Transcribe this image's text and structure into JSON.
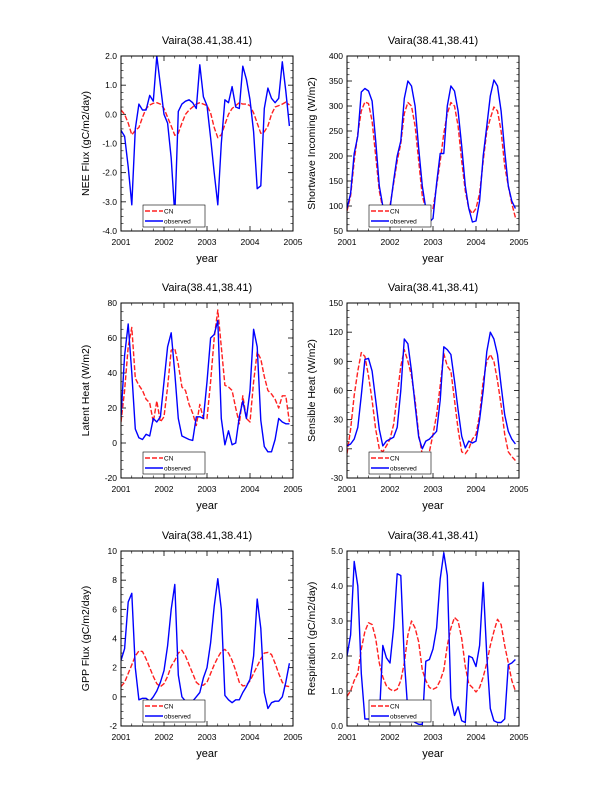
{
  "colors": {
    "CN": "#ff2020",
    "observed": "#0000ff"
  },
  "chart_data": [
    {
      "type": "line",
      "title": "Vaira(38.41,38.41)",
      "xlabel": "year",
      "ylabel": "NEE Flux (gC/m2/day)",
      "x_start": 2001,
      "x_interval": "monthly",
      "xlim": [
        2001,
        2005
      ],
      "xticks": [
        "2001",
        "2002",
        "2003",
        "2004",
        "2005"
      ],
      "ylim": [
        -4.0,
        2.0
      ],
      "yticks": [
        "-4.0",
        "-3.0",
        "-2.0",
        "-1.0",
        "0.0",
        "1.0",
        "2.0"
      ],
      "legend": {
        "placement": "bottom-left",
        "entries": [
          "CN",
          "observed"
        ]
      },
      "series": [
        {
          "name": "CN",
          "values": [
            0.15,
            0.0,
            -0.3,
            -0.7,
            -0.55,
            -0.45,
            -0.1,
            0.2,
            0.32,
            0.38,
            0.4,
            0.35,
            0.2,
            -0.1,
            -0.4,
            -0.72,
            -0.65,
            -0.3,
            0.0,
            0.15,
            0.25,
            0.35,
            0.4,
            0.35,
            0.3,
            0.05,
            -0.45,
            -0.8,
            -0.7,
            -0.35,
            0.0,
            0.2,
            0.3,
            0.4,
            0.35,
            0.35,
            0.3,
            0.05,
            -0.3,
            -0.65,
            -0.6,
            -0.4,
            0.0,
            0.25,
            0.3,
            0.35,
            0.42,
            0.32
          ]
        },
        {
          "name": "observed",
          "values": [
            -0.55,
            -0.75,
            -1.8,
            -3.1,
            -0.5,
            0.35,
            0.15,
            0.15,
            0.65,
            0.45,
            2.0,
            1.0,
            0.0,
            -0.3,
            -1.5,
            -3.45,
            0.1,
            0.35,
            0.45,
            0.5,
            0.4,
            0.2,
            1.7,
            0.6,
            0.3,
            -0.8,
            -2.0,
            -3.1,
            -1.0,
            0.5,
            0.4,
            0.95,
            0.25,
            0.2,
            1.65,
            1.2,
            0.5,
            -0.6,
            -2.55,
            -2.45,
            0.2,
            0.9,
            0.55,
            0.4,
            0.55,
            1.8,
            0.8,
            -0.4
          ]
        }
      ]
    },
    {
      "type": "line",
      "title": "Vaira(38.41,38.41)",
      "xlabel": "year",
      "ylabel": "Shortwave Incoming (W/m2)",
      "x_start": 2001,
      "x_interval": "monthly",
      "xlim": [
        2001,
        2005
      ],
      "xticks": [
        "2001",
        "2002",
        "2003",
        "2004",
        "2005"
      ],
      "ylim": [
        50,
        400
      ],
      "yticks": [
        "50",
        "100",
        "150",
        "200",
        "250",
        "300",
        "350",
        "400"
      ],
      "legend": {
        "placement": "bottom-left",
        "entries": [
          "CN",
          "observed"
        ]
      },
      "series": [
        {
          "name": "CN",
          "values": [
            90,
            120,
            190,
            245,
            290,
            308,
            305,
            270,
            200,
            130,
            95,
            82,
            100,
            145,
            190,
            225,
            285,
            307,
            300,
            260,
            190,
            120,
            95,
            87,
            95,
            140,
            190,
            245,
            285,
            307,
            300,
            260,
            190,
            130,
            95,
            85,
            95,
            125,
            190,
            250,
            275,
            298,
            290,
            250,
            180,
            140,
            105,
            77
          ]
        },
        {
          "name": "observed",
          "values": [
            95,
            125,
            205,
            240,
            328,
            335,
            330,
            310,
            230,
            140,
            100,
            70,
            95,
            150,
            200,
            230,
            315,
            350,
            340,
            300,
            215,
            140,
            95,
            68,
            75,
            145,
            205,
            205,
            300,
            340,
            330,
            290,
            220,
            140,
            95,
            68,
            70,
            110,
            200,
            260,
            320,
            352,
            340,
            290,
            210,
            140,
            110,
            95
          ]
        }
      ]
    },
    {
      "type": "line",
      "title": "Vaira(38.41,38.41)",
      "xlabel": "year",
      "ylabel": "Latent Heat (W/m2)",
      "x_start": 2001,
      "x_interval": "monthly",
      "xlim": [
        2001,
        2005
      ],
      "xticks": [
        "2001",
        "2002",
        "2003",
        "2004",
        "2005"
      ],
      "ylim": [
        -20,
        80
      ],
      "yticks": [
        "-20",
        "0",
        "20",
        "40",
        "60",
        "80"
      ],
      "legend": {
        "placement": "bottom-left",
        "entries": [
          "CN",
          "observed"
        ]
      },
      "series": [
        {
          "name": "CN",
          "values": [
            12,
            30,
            55,
            66,
            37,
            33,
            30,
            25,
            23,
            12,
            24,
            12,
            15,
            32,
            53,
            54,
            45,
            32,
            30,
            22,
            17,
            10,
            22,
            14,
            14,
            35,
            60,
            76,
            55,
            33,
            32,
            30,
            20,
            11,
            27,
            14,
            12,
            35,
            52,
            48,
            38,
            30,
            28,
            25,
            20,
            27,
            27,
            12
          ]
        },
        {
          "name": "observed",
          "values": [
            15,
            50,
            68,
            40,
            8,
            3,
            2,
            5,
            4,
            14,
            12,
            15,
            35,
            55,
            63,
            40,
            14,
            4,
            3,
            2,
            1.5,
            15,
            15,
            14,
            35,
            60,
            62,
            70,
            14,
            -1,
            7,
            -1,
            0,
            15,
            24,
            14,
            30,
            65,
            55,
            13,
            -2,
            -5,
            -5,
            2,
            14,
            12,
            11,
            11
          ]
        }
      ]
    },
    {
      "type": "line",
      "title": "Vaira(38.41,38.41)",
      "xlabel": "year",
      "ylabel": "Sensible Heat (W/m2)",
      "x_start": 2001,
      "x_interval": "monthly",
      "xlim": [
        2001,
        2005
      ],
      "xticks": [
        "2001",
        "2002",
        "2003",
        "2004",
        "2005"
      ],
      "ylim": [
        -30,
        150
      ],
      "yticks": [
        "-30",
        "0",
        "30",
        "60",
        "90",
        "120",
        "150"
      ],
      "legend": {
        "placement": "bottom-left",
        "entries": [
          "CN",
          "observed"
        ]
      },
      "series": [
        {
          "name": "CN",
          "values": [
            -5,
            20,
            55,
            80,
            99,
            95,
            75,
            50,
            20,
            0,
            -3,
            3,
            10,
            25,
            55,
            85,
            102,
            90,
            75,
            50,
            15,
            -6,
            -7,
            -3,
            15,
            35,
            65,
            98,
            85,
            80,
            50,
            20,
            -3,
            -5,
            0,
            10,
            15,
            35,
            70,
            90,
            97,
            90,
            70,
            45,
            15,
            -3,
            -8,
            -12
          ]
        },
        {
          "name": "observed",
          "values": [
            3,
            5,
            10,
            22,
            55,
            92,
            93,
            80,
            50,
            20,
            3,
            8,
            10,
            12,
            22,
            60,
            113,
            108,
            80,
            45,
            12,
            0,
            8,
            10,
            14,
            18,
            50,
            105,
            102,
            97,
            70,
            40,
            13,
            1,
            8,
            6,
            8,
            30,
            60,
            100,
            120,
            113,
            97,
            65,
            35,
            18,
            10,
            5
          ]
        }
      ]
    },
    {
      "type": "line",
      "title": "Vaira(38.41,38.41)",
      "xlabel": "year",
      "ylabel": "GPP Flux (gC/m2/day)",
      "x_start": 2001,
      "x_interval": "monthly",
      "xlim": [
        2001,
        2005
      ],
      "xticks": [
        "2001",
        "2002",
        "2003",
        "2004",
        "2005"
      ],
      "ylim": [
        -2,
        10
      ],
      "yticks": [
        "-2",
        "0",
        "2",
        "4",
        "6",
        "8",
        "10"
      ],
      "legend": {
        "placement": "bottom-left",
        "entries": [
          "CN",
          "observed"
        ]
      },
      "series": [
        {
          "name": "CN",
          "values": [
            0.7,
            1.0,
            1.6,
            2.2,
            2.8,
            3.15,
            3.1,
            2.6,
            2.0,
            1.4,
            0.9,
            0.7,
            0.9,
            1.4,
            2.1,
            2.5,
            3.0,
            3.2,
            2.8,
            2.2,
            1.6,
            1.0,
            0.8,
            0.8,
            1.0,
            1.6,
            2.2,
            2.7,
            3.1,
            3.25,
            3.0,
            2.5,
            1.8,
            1.0,
            0.75,
            0.8,
            1.1,
            1.6,
            2.1,
            2.6,
            3.0,
            3.05,
            2.9,
            2.3,
            1.6,
            1.0,
            0.75,
            0.7
          ]
        },
        {
          "name": "observed",
          "values": [
            2.5,
            3.3,
            6.5,
            7.1,
            2.0,
            -0.2,
            -0.1,
            -0.1,
            -0.3,
            0.0,
            0.4,
            1.0,
            1.8,
            3.5,
            6.0,
            7.7,
            1.5,
            0.0,
            -0.3,
            -0.4,
            -0.3,
            0.0,
            0.3,
            1.3,
            2.0,
            3.7,
            6.2,
            8.1,
            6.0,
            0.1,
            -0.2,
            -0.4,
            -0.2,
            -0.2,
            0.3,
            0.7,
            1.2,
            2.8,
            6.7,
            4.7,
            0.3,
            -0.8,
            -0.4,
            -0.3,
            -0.3,
            0.0,
            1.0,
            2.3
          ]
        }
      ]
    },
    {
      "type": "line",
      "title": "Vaira(38.41,38.41)",
      "xlabel": "year",
      "ylabel": "Respiration (gC/m2/day)",
      "x_start": 2001,
      "x_interval": "monthly",
      "xlim": [
        2001,
        2005
      ],
      "xticks": [
        "2001",
        "2002",
        "2003",
        "2004",
        "2005"
      ],
      "ylim": [
        0.0,
        5.0
      ],
      "yticks": [
        "0.0",
        "1.0",
        "2.0",
        "3.0",
        "4.0",
        "5.0"
      ],
      "legend": {
        "placement": "bottom-left",
        "entries": [
          "CN",
          "observed"
        ]
      },
      "series": [
        {
          "name": "CN",
          "values": [
            0.85,
            1.0,
            1.3,
            1.5,
            2.2,
            2.7,
            2.95,
            2.9,
            2.5,
            1.8,
            1.4,
            1.15,
            1.05,
            1.0,
            1.05,
            1.3,
            1.8,
            2.6,
            3.0,
            2.8,
            2.4,
            1.6,
            1.3,
            1.1,
            1.05,
            1.1,
            1.3,
            1.6,
            2.3,
            2.8,
            3.1,
            3.0,
            2.5,
            1.7,
            1.2,
            1.1,
            0.97,
            1.1,
            1.4,
            1.8,
            2.3,
            2.7,
            3.05,
            2.9,
            2.3,
            1.8,
            1.3,
            1.0
          ]
        },
        {
          "name": "observed",
          "values": [
            2.0,
            2.6,
            4.7,
            4.0,
            1.5,
            0.2,
            0.2,
            0.2,
            0.2,
            0.2,
            2.3,
            1.95,
            1.8,
            2.8,
            4.35,
            4.3,
            1.9,
            0.4,
            0.2,
            0.1,
            0.05,
            0.05,
            1.85,
            1.9,
            2.2,
            2.8,
            4.2,
            4.95,
            4.3,
            0.8,
            0.3,
            0.55,
            0.15,
            0.1,
            2.0,
            1.95,
            1.7,
            2.3,
            4.1,
            2.0,
            0.5,
            0.15,
            0.1,
            0.1,
            0.2,
            1.75,
            1.8,
            1.9
          ]
        }
      ]
    }
  ]
}
